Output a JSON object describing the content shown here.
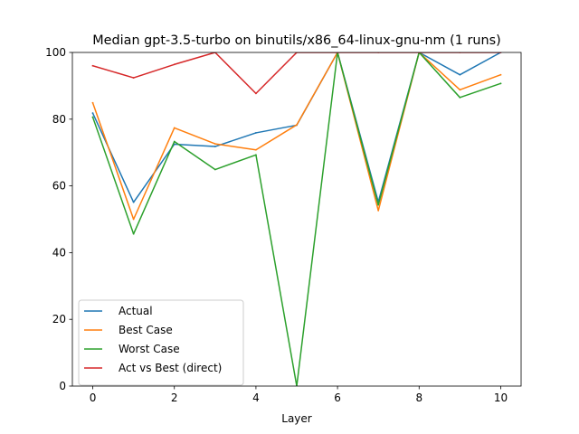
{
  "chart_data": {
    "type": "line",
    "title": "Median gpt-3.5-turbo on binutils/x86_64-linux-gnu-nm (1 runs)",
    "xlabel": "Layer",
    "ylabel": "",
    "x": [
      0,
      1,
      2,
      3,
      4,
      5,
      6,
      7,
      8,
      9,
      10
    ],
    "xlim": [
      -0.5,
      10.5
    ],
    "ylim": [
      0,
      100
    ],
    "xticks": [
      0,
      2,
      4,
      6,
      8,
      10
    ],
    "yticks": [
      0,
      20,
      40,
      60,
      80,
      100
    ],
    "grid": false,
    "legend_location": "lower left",
    "series": [
      {
        "name": "Actual",
        "color": "#1f77b4",
        "values": [
          81.8,
          55.1,
          72.5,
          71.8,
          75.9,
          78.2,
          100,
          55.2,
          100,
          93.3,
          100
        ]
      },
      {
        "name": "Best Case",
        "color": "#ff7f0e",
        "values": [
          84.9,
          50.0,
          77.4,
          72.6,
          70.8,
          78.3,
          100,
          52.6,
          100,
          88.8,
          93.3
        ]
      },
      {
        "name": "Worst Case",
        "color": "#2ca02c",
        "values": [
          80.6,
          45.6,
          73.3,
          64.9,
          69.3,
          0,
          100,
          54.3,
          100,
          86.5,
          90.7
        ]
      },
      {
        "name": "Act vs Best (direct)",
        "color": "#d62728",
        "values": [
          96.0,
          92.4,
          96.4,
          100,
          87.7,
          100,
          100,
          100,
          100,
          100,
          100
        ]
      }
    ]
  }
}
